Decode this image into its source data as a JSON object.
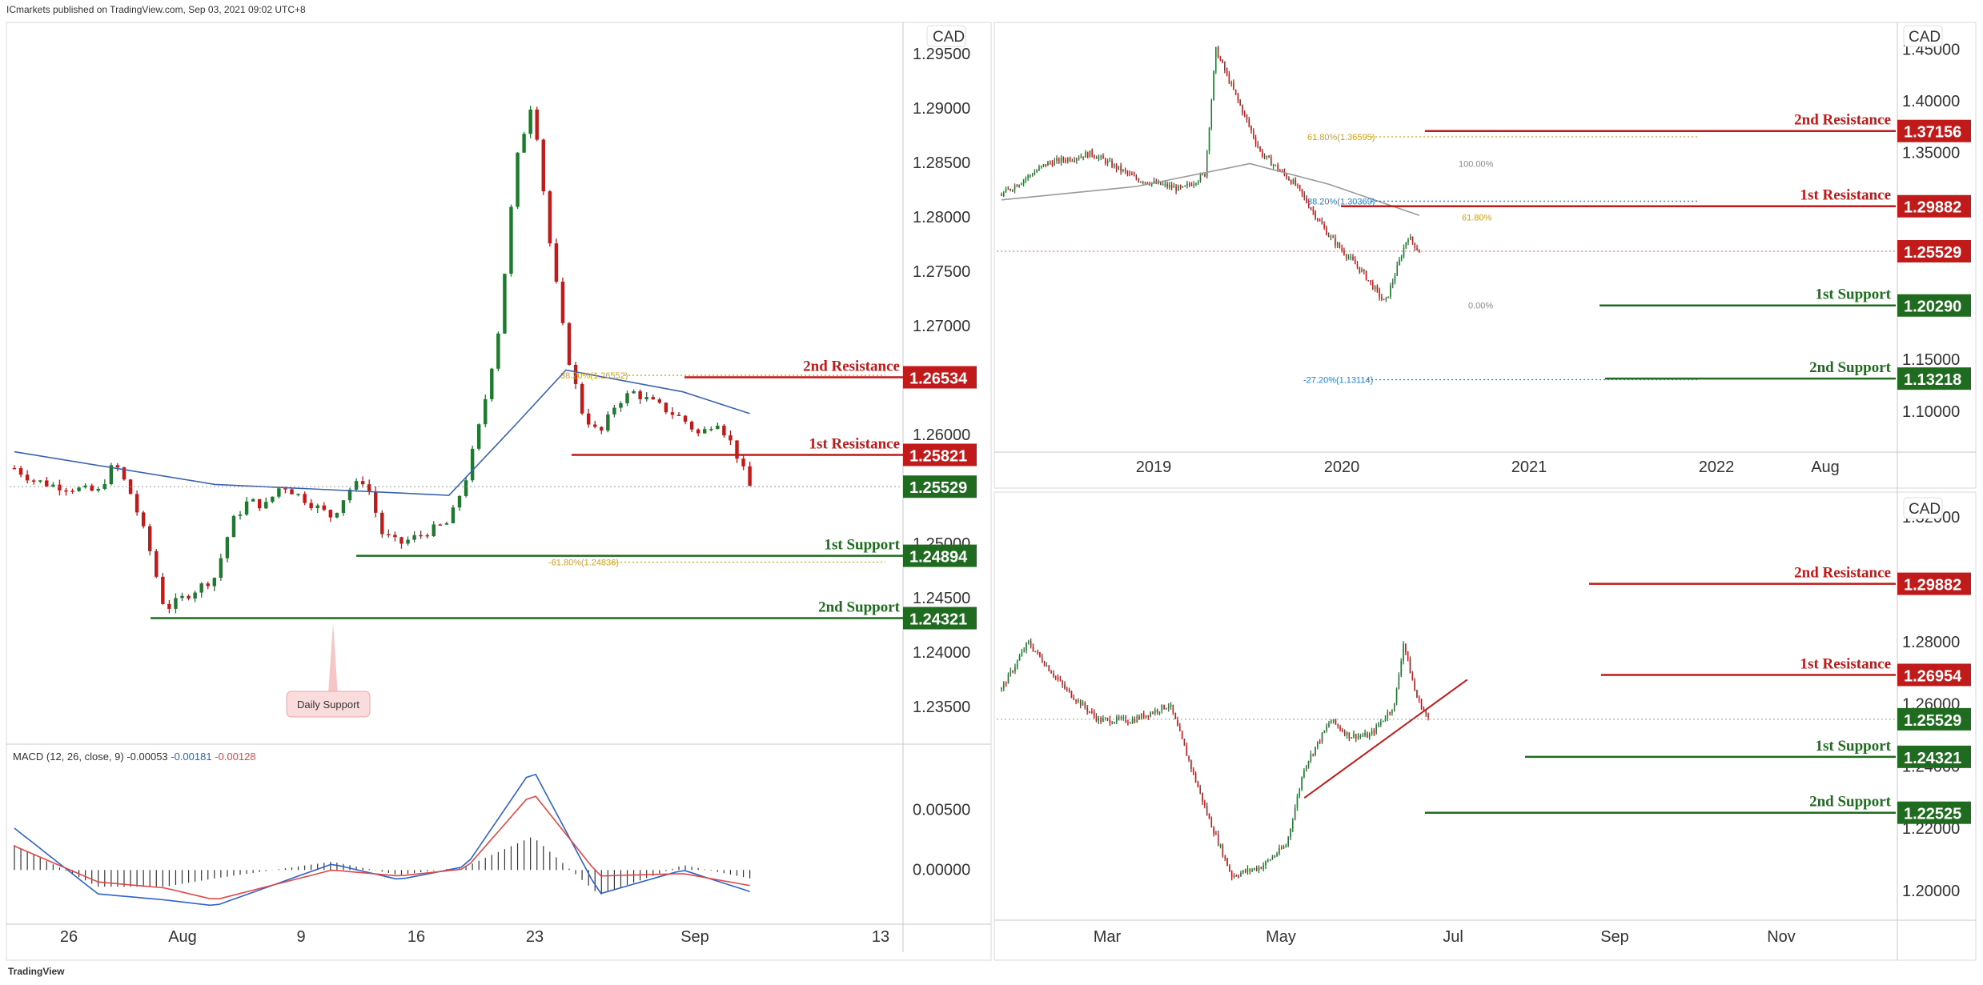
{
  "header": "ICmarkets published on TradingView.com, Sep 03, 2021 09:02 UTC+8",
  "footer": "TradingView",
  "colors": {
    "up": "#1e7a2e",
    "down": "#c21a1a",
    "resistance": "#c01a1a",
    "support": "#1f6b1f",
    "price": "#1f6b1f",
    "ma": "#3a64b0",
    "fib": "#d4a017",
    "fib_blue": "#1e7fd8",
    "macd": "#2d62c8",
    "signal": "#e04848",
    "grid_text": "#333333",
    "border": "#c8c8c8"
  },
  "chart_data": [
    {
      "id": "left",
      "type": "candlestick",
      "title": "",
      "currency": "CAD",
      "x_ticks": [
        "26",
        "Aug",
        "9",
        "16",
        "23",
        "Sep",
        "13"
      ],
      "y_ticks": [
        "1.29500",
        "1.29000",
        "1.28500",
        "1.28000",
        "1.27500",
        "1.27000",
        "1.26000",
        "1.25000",
        "1.24500",
        "1.24000",
        "1.23500"
      ],
      "ylim": [
        1.232,
        1.2978
      ],
      "current_price": "1.25529",
      "levels": [
        {
          "name": "2nd Resistance",
          "value": "1.26534",
          "kind": "resistance"
        },
        {
          "name": "1st Resistance",
          "value": "1.25821",
          "kind": "resistance"
        },
        {
          "name": "1st Support",
          "value": "1.24894",
          "kind": "support"
        },
        {
          "name": "2nd Support",
          "value": "1.24321",
          "kind": "support"
        }
      ],
      "fib_labels": [
        "38.20%(1.26552)",
        "-61.80%(1.24836)"
      ],
      "annotation": "Daily Support",
      "close_path": [
        [
          "2021-07-21",
          1.257
        ],
        [
          "2021-07-22",
          1.256
        ],
        [
          "2021-07-23",
          1.2555
        ],
        [
          "2021-07-26",
          1.2548
        ],
        [
          "2021-07-27",
          1.2575
        ],
        [
          "2021-07-28",
          1.2545
        ],
        [
          "2021-07-29",
          1.25
        ],
        [
          "2021-07-30",
          1.244
        ],
        [
          "2021-08-02",
          1.247
        ],
        [
          "2021-08-03",
          1.252
        ],
        [
          "2021-08-04",
          1.254
        ],
        [
          "2021-08-05",
          1.2535
        ],
        [
          "2021-08-06",
          1.2555
        ],
        [
          "2021-08-09",
          1.2525
        ],
        [
          "2021-08-10",
          1.255
        ],
        [
          "2021-08-11",
          1.256
        ],
        [
          "2021-08-12",
          1.251
        ],
        [
          "2021-08-13",
          1.25
        ],
        [
          "2021-08-16",
          1.252
        ],
        [
          "2021-08-17",
          1.256
        ],
        [
          "2021-08-18",
          1.262
        ],
        [
          "2021-08-19",
          1.27
        ],
        [
          "2021-08-20",
          1.285
        ],
        [
          "2021-08-21",
          1.291
        ],
        [
          "2021-08-22",
          1.278
        ],
        [
          "2021-08-23",
          1.268
        ],
        [
          "2021-08-24",
          1.262
        ],
        [
          "2021-08-25",
          1.26
        ],
        [
          "2021-08-26",
          1.263
        ],
        [
          "2021-08-27",
          1.264
        ],
        [
          "2021-08-30",
          1.2615
        ],
        [
          "2021-08-31",
          1.26
        ],
        [
          "2021-09-01",
          1.2615
        ],
        [
          "2021-09-02",
          1.259
        ],
        [
          "2021-09-03",
          1.2553
        ]
      ],
      "ma_path": [
        [
          "2021-07-21",
          1.2585
        ],
        [
          "2021-08-02",
          1.2555
        ],
        [
          "2021-08-16",
          1.2545
        ],
        [
          "2021-08-20",
          1.261
        ],
        [
          "2021-08-23",
          1.266
        ],
        [
          "2021-08-30",
          1.264
        ],
        [
          "2021-09-03",
          1.262
        ]
      ],
      "macd": {
        "label": "MACD (12, 26, close, 9)",
        "values": [
          "-0.00053",
          "-0.00181",
          "-0.00128"
        ],
        "y_ticks": [
          "0.00500",
          "0.00000"
        ],
        "ylim": [
          -0.0042,
          0.0102
        ],
        "macd_path": [
          [
            "2021-07-21",
            0.0035
          ],
          [
            "2021-07-26",
            -0.002
          ],
          [
            "2021-07-30",
            -0.0025
          ],
          [
            "2021-08-02",
            -0.003
          ],
          [
            "2021-08-09",
            0.0005
          ],
          [
            "2021-08-13",
            -0.0008
          ],
          [
            "2021-08-17",
            0.0003
          ],
          [
            "2021-08-21",
            0.0085
          ],
          [
            "2021-08-25",
            -0.002
          ],
          [
            "2021-08-30",
            0.0
          ],
          [
            "2021-09-03",
            -0.0018
          ]
        ],
        "signal_path": [
          [
            "2021-07-21",
            0.002
          ],
          [
            "2021-07-26",
            -0.001
          ],
          [
            "2021-07-30",
            -0.0015
          ],
          [
            "2021-08-02",
            -0.0025
          ],
          [
            "2021-08-09",
            0.0
          ],
          [
            "2021-08-13",
            -0.0005
          ],
          [
            "2021-08-17",
            0.0001
          ],
          [
            "2021-08-21",
            0.0065
          ],
          [
            "2021-08-25",
            -0.0005
          ],
          [
            "2021-08-30",
            -0.0003
          ],
          [
            "2021-09-03",
            -0.0013
          ]
        ]
      }
    },
    {
      "id": "top-right",
      "type": "candlestick",
      "title": "",
      "currency": "CAD",
      "x_ticks": [
        "2019",
        "2020",
        "2021",
        "2022",
        "Aug"
      ],
      "y_ticks": [
        "1.45000",
        "1.40000",
        "1.35000",
        "1.30000",
        "1.25000",
        "1.20000",
        "1.15000",
        "1.10000"
      ],
      "ylim": [
        1.065,
        1.475
      ],
      "current_price": "1.25529",
      "levels": [
        {
          "name": "2nd Resistance",
          "value": "1.37156",
          "kind": "resistance"
        },
        {
          "name": "1st Resistance",
          "value": "1.29882",
          "kind": "resistance"
        },
        {
          "name": "1st Support",
          "value": "1.20290",
          "kind": "support"
        },
        {
          "name": "2nd Support",
          "value": "1.13218",
          "kind": "support"
        }
      ],
      "fib_labels": [
        "61.80%(1.36595)",
        "38.20%(1.30369)",
        "100.00%",
        "61.80%",
        "0.00%",
        "-27.20%(1.13114)"
      ],
      "close_path": [
        [
          "2018-08",
          1.31
        ],
        [
          "2018-12",
          1.34
        ],
        [
          "2019-04",
          1.35
        ],
        [
          "2019-08",
          1.325
        ],
        [
          "2019-12",
          1.315
        ],
        [
          "2020-02",
          1.33
        ],
        [
          "2020-03",
          1.45
        ],
        [
          "2020-05",
          1.4
        ],
        [
          "2020-07",
          1.35
        ],
        [
          "2020-10",
          1.32
        ],
        [
          "2021-01",
          1.27
        ],
        [
          "2021-04",
          1.235
        ],
        [
          "2021-06",
          1.205
        ],
        [
          "2021-08",
          1.27
        ],
        [
          "2021-09",
          1.2553
        ]
      ],
      "ma_path": [
        [
          "2018-08",
          1.305
        ],
        [
          "2019-08",
          1.318
        ],
        [
          "2020-06",
          1.34
        ],
        [
          "2021-01",
          1.32
        ],
        [
          "2021-09",
          1.29
        ]
      ]
    },
    {
      "id": "bottom-right",
      "type": "candlestick",
      "title": "",
      "currency": "CAD",
      "x_ticks": [
        "Mar",
        "May",
        "Jul",
        "Sep",
        "Nov"
      ],
      "y_ticks": [
        "1.32000",
        "1.28000",
        "1.26000",
        "1.24000",
        "1.22000",
        "1.20000"
      ],
      "ylim": [
        1.192,
        1.327
      ],
      "current_price": "1.25529",
      "levels": [
        {
          "name": "2nd Resistance",
          "value": "1.29882",
          "kind": "resistance"
        },
        {
          "name": "1st Resistance",
          "value": "1.26954",
          "kind": "resistance"
        },
        {
          "name": "1st Support",
          "value": "1.24321",
          "kind": "support"
        },
        {
          "name": "2nd Support",
          "value": "1.22525",
          "kind": "support"
        }
      ],
      "close_path": [
        [
          "2021-01-05",
          1.265
        ],
        [
          "2021-01-20",
          1.28
        ],
        [
          "2021-02-10",
          1.265
        ],
        [
          "2021-03-01",
          1.255
        ],
        [
          "2021-03-20",
          1.255
        ],
        [
          "2021-04-10",
          1.26
        ],
        [
          "2021-05-01",
          1.225
        ],
        [
          "2021-05-15",
          1.205
        ],
        [
          "2021-06-01",
          1.208
        ],
        [
          "2021-06-15",
          1.215
        ],
        [
          "2021-06-25",
          1.24
        ],
        [
          "2021-07-10",
          1.255
        ],
        [
          "2021-07-20",
          1.25
        ],
        [
          "2021-08-01",
          1.25
        ],
        [
          "2021-08-15",
          1.26
        ],
        [
          "2021-08-20",
          1.28
        ],
        [
          "2021-08-27",
          1.263
        ],
        [
          "2021-09-03",
          1.2553
        ]
      ],
      "trendline": [
        [
          "2021-06-25",
          1.23
        ],
        [
          "2021-09-25",
          1.268
        ]
      ]
    }
  ]
}
